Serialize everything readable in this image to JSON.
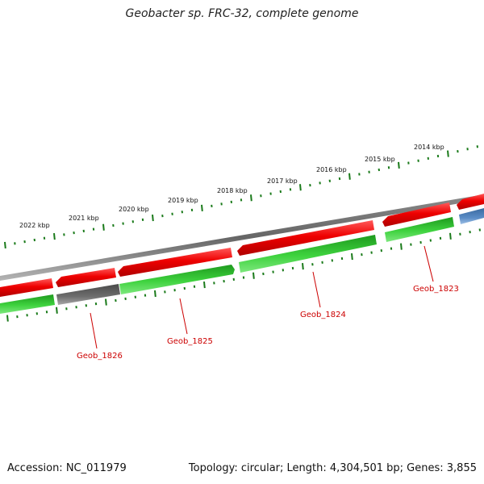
{
  "title": "Geobacter sp. FRC-32, complete genome",
  "footer": {
    "accession": "Accession: NC_011979",
    "summary": "Topology: circular; Length: 4,304,501 bp; Genes: 3,855"
  },
  "colors": {
    "forward_gene": "#e60000",
    "reverse_gene": "#2ec82e",
    "gray_gene": "#666666",
    "blue_gene": "#4a7db5",
    "backbone": "#7a7a7a",
    "ticks": "#1a7a1a",
    "label": "#cc0000"
  },
  "ruler": [
    {
      "label": "2022 kbp"
    },
    {
      "label": "2021 kbp"
    },
    {
      "label": "2020 kbp"
    },
    {
      "label": "2019 kbp"
    },
    {
      "label": "2018 kbp"
    },
    {
      "label": "2017 kbp"
    },
    {
      "label": "2016 kbp"
    },
    {
      "label": "2015 kbp"
    },
    {
      "label": "2014 kbp"
    }
  ],
  "gene_labels": [
    {
      "name": "Geob_1826"
    },
    {
      "name": "Geob_1825"
    },
    {
      "name": "Geob_1824"
    },
    {
      "name": "Geob_1823"
    }
  ]
}
